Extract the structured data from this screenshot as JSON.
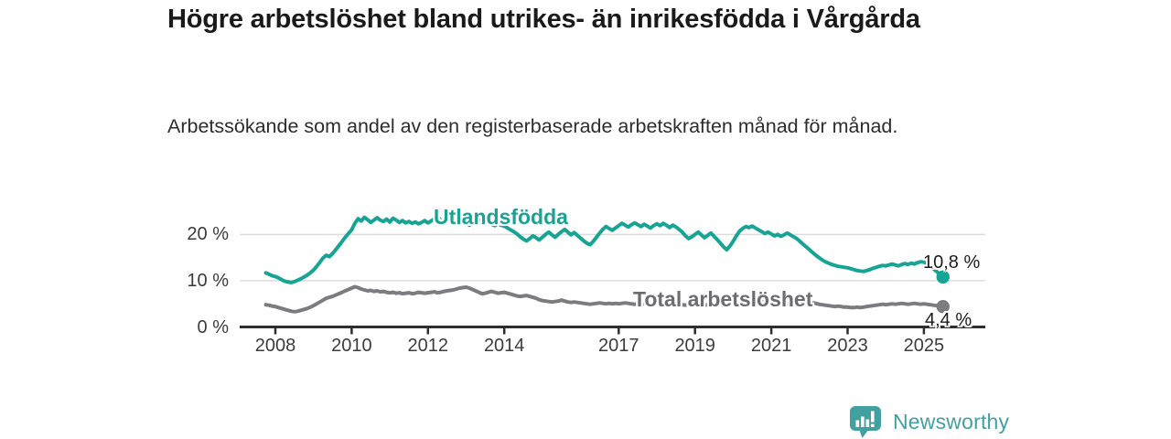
{
  "chart_data": {
    "type": "line",
    "title": "Högre arbetslöshet bland utrikes- än inrikesfödda i Vårgårda",
    "subtitle": "Arbetssökande som andel av den registerbaserade arbetskraften månad för månad.",
    "unit": "%",
    "grid": "horizontal",
    "x_ticks": [
      2008,
      2010,
      2012,
      2014,
      2017,
      2019,
      2021,
      2023,
      2025
    ],
    "y_ticks": [
      {
        "value": 0,
        "label": "0 %"
      },
      {
        "value": 10,
        "label": "10 %"
      },
      {
        "value": 20,
        "label": "20 %"
      }
    ],
    "ylim": [
      0,
      25
    ],
    "x_range_decimal_years": [
      2007.75,
      2025.58
    ],
    "interval": "monthly",
    "axis_color": "#2e2e2e",
    "gridline_color": "#dcdcdc",
    "series": [
      {
        "name": "Utlandsfödda",
        "color": "#17a494",
        "start_decimal_year": 2007.75,
        "end_label": "10,8 %",
        "end_value": 10.8,
        "values": [
          11.7,
          11.4,
          11.1,
          10.9,
          10.6,
          10.2,
          9.9,
          9.7,
          9.6,
          9.8,
          10.1,
          10.4,
          10.8,
          11.2,
          11.7,
          12.3,
          13.1,
          14.0,
          14.9,
          15.5,
          15.2,
          15.9,
          16.7,
          17.6,
          18.5,
          19.4,
          20.2,
          21.0,
          22.4,
          23.4,
          22.9,
          23.7,
          23.2,
          22.6,
          23.1,
          23.6,
          23.1,
          22.8,
          23.3,
          22.7,
          23.5,
          23.1,
          22.6,
          23.0,
          22.5,
          22.8,
          22.4,
          22.7,
          22.3,
          22.6,
          23.0,
          22.5,
          22.9,
          23.4,
          23.8,
          23.1,
          22.3,
          22.7,
          23.2,
          23.6,
          23.3,
          22.9,
          23.2,
          22.6,
          22.0,
          22.5,
          23.1,
          23.5,
          22.9,
          22.4,
          22.7,
          22.2,
          21.9,
          22.3,
          22.0,
          21.8,
          21.4,
          21.0,
          20.6,
          20.1,
          19.5,
          19.0,
          18.6,
          19.1,
          19.7,
          19.3,
          18.8,
          19.4,
          20.0,
          20.5,
          19.9,
          19.4,
          20.0,
          20.6,
          21.1,
          20.5,
          19.9,
          20.4,
          19.8,
          19.2,
          18.6,
          18.1,
          17.8,
          18.5,
          19.4,
          20.3,
          21.1,
          21.7,
          21.3,
          20.9,
          21.4,
          21.9,
          22.4,
          22.0,
          21.6,
          22.1,
          22.5,
          22.1,
          21.7,
          22.2,
          21.8,
          21.4,
          21.9,
          22.3,
          21.9,
          22.4,
          22.0,
          21.5,
          22.0,
          21.6,
          21.1,
          20.5,
          19.7,
          19.1,
          19.5,
          20.0,
          20.5,
          19.9,
          19.3,
          19.8,
          20.3,
          19.6,
          18.9,
          18.1,
          17.3,
          16.7,
          17.5,
          18.5,
          19.7,
          20.7,
          21.3,
          21.7,
          21.5,
          21.8,
          21.4,
          21.0,
          20.6,
          20.2,
          20.5,
          20.1,
          19.7,
          20.0,
          19.6,
          19.9,
          20.3,
          19.9,
          19.5,
          19.1,
          18.5,
          17.9,
          17.3,
          16.7,
          16.1,
          15.5,
          15.0,
          14.5,
          14.1,
          13.8,
          13.5,
          13.3,
          13.1,
          13.0,
          12.9,
          12.8,
          12.6,
          12.4,
          12.2,
          12.1,
          12.0,
          12.2,
          12.4,
          12.7,
          12.9,
          13.1,
          13.3,
          13.2,
          13.4,
          13.6,
          13.4,
          13.2,
          13.5,
          13.7,
          13.5,
          13.8,
          13.6,
          13.9,
          14.1,
          14.0,
          13.7,
          13.2,
          12.6,
          12.0,
          11.4,
          10.8
        ]
      },
      {
        "name": "Total arbetslöshet",
        "color": "#7b7b80",
        "label_color": "#6c6c71",
        "start_decimal_year": 2007.75,
        "end_label": "4,4 %",
        "end_value": 4.4,
        "values": [
          4.8,
          4.7,
          4.5,
          4.4,
          4.2,
          4.0,
          3.8,
          3.6,
          3.4,
          3.3,
          3.4,
          3.6,
          3.8,
          4.0,
          4.3,
          4.6,
          5.0,
          5.4,
          5.8,
          6.2,
          6.4,
          6.6,
          6.9,
          7.2,
          7.5,
          7.8,
          8.1,
          8.4,
          8.7,
          8.5,
          8.2,
          8.0,
          7.8,
          7.9,
          7.7,
          7.8,
          7.6,
          7.7,
          7.5,
          7.4,
          7.5,
          7.3,
          7.4,
          7.2,
          7.3,
          7.4,
          7.2,
          7.3,
          7.5,
          7.4,
          7.3,
          7.4,
          7.5,
          7.6,
          7.4,
          7.5,
          7.7,
          7.8,
          7.9,
          8.0,
          8.2,
          8.4,
          8.5,
          8.6,
          8.4,
          8.1,
          7.8,
          7.5,
          7.2,
          7.3,
          7.5,
          7.7,
          7.5,
          7.3,
          7.4,
          7.5,
          7.3,
          7.1,
          6.9,
          6.7,
          6.6,
          6.7,
          6.8,
          6.6,
          6.4,
          6.2,
          5.9,
          5.7,
          5.6,
          5.5,
          5.4,
          5.5,
          5.6,
          5.8,
          5.6,
          5.4,
          5.3,
          5.4,
          5.3,
          5.2,
          5.1,
          5.0,
          4.9,
          5.0,
          5.1,
          5.2,
          5.1,
          5.0,
          5.1,
          5.0,
          5.1,
          5.0,
          5.1,
          5.2,
          5.1,
          5.0,
          4.9,
          5.0,
          5.1,
          5.0,
          4.9,
          5.0,
          4.9,
          4.8,
          4.9,
          5.0,
          4.9,
          4.8,
          4.7,
          4.8,
          4.9,
          4.8,
          4.7,
          4.8,
          4.7,
          4.8,
          4.9,
          4.8,
          4.7,
          4.8,
          4.9,
          5.0,
          4.9,
          4.8,
          4.9,
          5.0,
          5.1,
          5.2,
          5.4,
          5.6,
          5.8,
          5.9,
          6.0,
          5.9,
          5.8,
          5.7,
          5.6,
          5.5,
          5.4,
          5.5,
          5.4,
          5.3,
          5.2,
          5.1,
          5.0,
          5.1,
          5.0,
          4.9,
          4.8,
          4.9,
          5.0,
          5.3,
          5.2,
          5.1,
          4.9,
          4.8,
          4.7,
          4.6,
          4.5,
          4.4,
          4.5,
          4.4,
          4.3,
          4.3,
          4.2,
          4.2,
          4.3,
          4.2,
          4.3,
          4.4,
          4.5,
          4.6,
          4.7,
          4.8,
          4.9,
          4.8,
          4.9,
          5.0,
          4.9,
          5.0,
          5.1,
          5.0,
          4.9,
          5.0,
          5.1,
          5.0,
          4.9,
          5.0,
          4.9,
          4.8,
          4.7,
          4.6,
          4.5,
          4.4
        ]
      }
    ]
  },
  "footer": {
    "brand": "Newsworthy",
    "brand_color": "#43a0a0",
    "icon": "newsworthy-barchart-bubble-icon"
  }
}
